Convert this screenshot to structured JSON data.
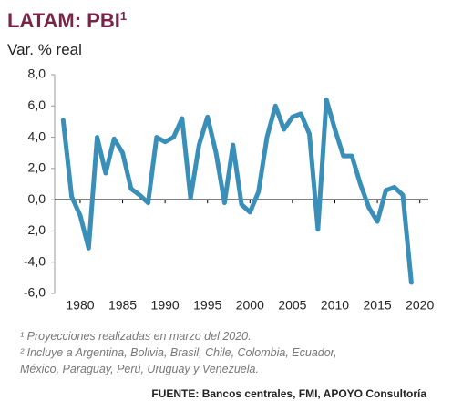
{
  "chart_data": {
    "type": "line",
    "title": "LATAM: PBI",
    "title_note": "1",
    "subtitle": "Var. % real",
    "x": [
      1978,
      1979,
      1980,
      1981,
      1982,
      1983,
      1984,
      1985,
      1986,
      1987,
      1988,
      1989,
      1990,
      1991,
      1992,
      1993,
      1994,
      1995,
      1996,
      1997,
      1998,
      1999,
      2000,
      2001,
      2002,
      2003,
      2004,
      2005,
      2006,
      2007,
      2008,
      2009,
      2010,
      2011,
      2012,
      2013,
      2014,
      2015,
      2016,
      2017,
      2018,
      2019
    ],
    "series": [
      {
        "color": "#3a8fb8",
        "values": [
          5.1,
          0.2,
          -1.0,
          -3.1,
          4.0,
          1.7,
          3.9,
          3.0,
          0.7,
          0.3,
          -0.2,
          4.0,
          3.7,
          4.0,
          5.2,
          0.1,
          3.5,
          5.3,
          3.0,
          -0.2,
          3.5,
          -0.3,
          -0.8,
          0.5,
          4.0,
          6.0,
          4.5,
          5.3,
          5.5,
          4.2,
          -1.9,
          6.4,
          4.5,
          2.8,
          2.8,
          1.0,
          -0.5,
          -1.4,
          0.6,
          0.8,
          0.3,
          -5.3
        ]
      }
    ],
    "xlim": [
      1977,
      2021
    ],
    "xticks": [
      1980,
      1985,
      1990,
      1995,
      2000,
      2005,
      2010,
      2015,
      2020
    ],
    "ylim": [
      -6,
      8
    ],
    "yticks": [
      {
        "value": -6,
        "label": "-6,0"
      },
      {
        "value": -4,
        "label": "-4,0"
      },
      {
        "value": -2,
        "label": "-2,0"
      },
      {
        "value": 0,
        "label": "0,0"
      },
      {
        "value": 2,
        "label": "2,0"
      },
      {
        "value": 4,
        "label": "4,0"
      },
      {
        "value": 6,
        "label": "6,0"
      },
      {
        "value": 8,
        "label": "8,0"
      }
    ],
    "notes": [
      "¹ Proyecciones realizadas en marzo del 2020.",
      "² Incluye a Argentina, Bolivia, Brasil, Chile, Colombia, Ecuador,",
      "México, Paraguay, Perú, Uruguay y Venezuela."
    ],
    "source": "FUENTE: Bancos centrales, FMI, APOYO Consultoría"
  }
}
